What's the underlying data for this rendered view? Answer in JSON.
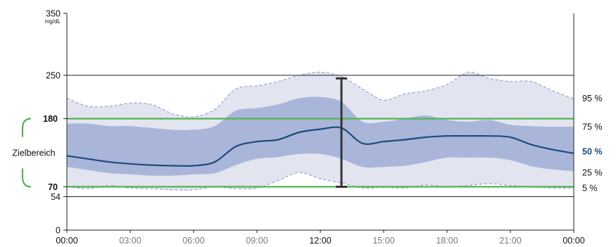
{
  "chart_data": {
    "type": "area",
    "title": "",
    "xlabel": "",
    "ylabel": "",
    "unit": "mg/dL",
    "ylim": [
      0,
      350
    ],
    "xlim": [
      0,
      24
    ],
    "x_ticks": [
      {
        "x": 0,
        "label": "00:00",
        "bold": true
      },
      {
        "x": 3,
        "label": "03:00",
        "bold": false
      },
      {
        "x": 6,
        "label": "06:00",
        "bold": false
      },
      {
        "x": 9,
        "label": "09:00",
        "bold": false
      },
      {
        "x": 12,
        "label": "12:00",
        "bold": true
      },
      {
        "x": 15,
        "label": "15:00",
        "bold": false
      },
      {
        "x": 18,
        "label": "18:00",
        "bold": false
      },
      {
        "x": 21,
        "label": "21:00",
        "bold": false
      },
      {
        "x": 24,
        "label": "00:00",
        "bold": true
      }
    ],
    "y_ticks": [
      {
        "y": 350,
        "label": "350",
        "line": false,
        "green": false
      },
      {
        "y": 250,
        "label": "250",
        "line": true,
        "green": false
      },
      {
        "y": 180,
        "label": "180",
        "line": true,
        "green": true
      },
      {
        "y": 70,
        "label": "70",
        "line": true,
        "green": true
      },
      {
        "y": 54,
        "label": "54",
        "line": true,
        "green": false
      },
      {
        "y": 0,
        "label": "0",
        "line": false,
        "green": false
      }
    ],
    "target_range": {
      "label": "Zielbereich",
      "low": 70,
      "high": 180
    },
    "x": [
      0,
      1,
      2,
      3,
      4,
      5,
      6,
      7,
      8,
      9,
      10,
      11,
      12,
      13,
      14,
      15,
      16,
      17,
      18,
      19,
      20,
      21,
      22,
      23,
      24
    ],
    "series": [
      {
        "values": [
          213,
          200,
          200,
          205,
          203,
          188,
          183,
          195,
          228,
          233,
          240,
          250,
          255,
          248,
          228,
          210,
          220,
          225,
          235,
          255,
          245,
          240,
          240,
          225,
          212
        ]
      },
      {
        "values": [
          172,
          172,
          168,
          168,
          165,
          162,
          162,
          168,
          193,
          197,
          203,
          213,
          215,
          207,
          175,
          175,
          180,
          185,
          178,
          175,
          178,
          170,
          168,
          167,
          167
        ]
      },
      {
        "values": [
          120,
          115,
          110,
          107,
          105,
          104,
          104,
          110,
          135,
          143,
          146,
          158,
          163,
          165,
          140,
          143,
          146,
          150,
          152,
          152,
          152,
          150,
          138,
          130,
          124
        ]
      },
      {
        "values": [
          102,
          97,
          92,
          90,
          88,
          88,
          90,
          92,
          105,
          115,
          118,
          123,
          123,
          115,
          102,
          102,
          104,
          110,
          117,
          117,
          117,
          113,
          103,
          98,
          95
        ]
      },
      {
        "values": [
          70,
          67,
          72,
          68,
          67,
          65,
          65,
          70,
          67,
          68,
          80,
          93,
          83,
          76,
          68,
          69,
          68,
          73,
          70,
          72,
          75,
          72,
          70,
          68,
          68
        ]
      }
    ],
    "percentiles": [
      {
        "label": "95 %",
        "value": 212,
        "bold": false
      },
      {
        "label": "75 %",
        "value": 167,
        "bold": false
      },
      {
        "label": "50 %",
        "value": 124,
        "bold": true
      },
      {
        "label": "25 %",
        "value": 95,
        "bold": false
      },
      {
        "label": "5 %",
        "value": 68,
        "bold": false
      }
    ],
    "error_bar": {
      "x": 13,
      "low": 70,
      "high": 245
    },
    "grid": false,
    "colors": {
      "outer_band": "#e2e5f0",
      "inner_band": "#aab6d9",
      "median_line": "#1b4b7e",
      "target_line": "#50b550",
      "grid_line": "#222222",
      "error_bar": "#333333",
      "dashed_line": "#9fa8cc",
      "tick_text_light": "#7a7a7a",
      "tick_text_dark": "#111111",
      "median_label": "#1b4b7e"
    }
  }
}
